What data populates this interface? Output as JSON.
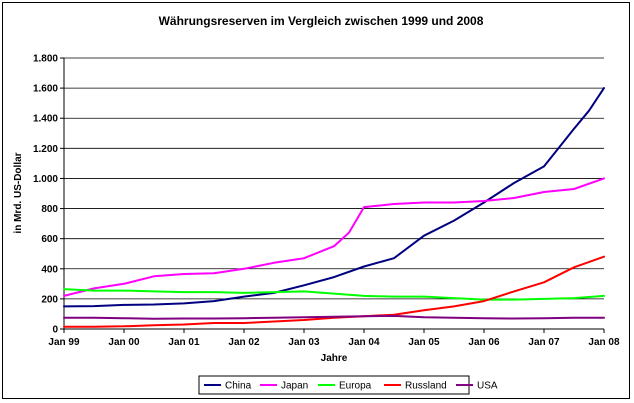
{
  "chart_data": {
    "type": "line",
    "title": "Währungsreserven im Vergleich zwischen 1999 und 2008",
    "xlabel": "Jahre",
    "ylabel": "in Mrd. US-Dollar",
    "ylim": [
      0,
      1800
    ],
    "yticks": [
      0,
      200,
      400,
      600,
      800,
      1000,
      1200,
      1400,
      1600,
      1800
    ],
    "ytick_labels": [
      "0",
      "200",
      "400",
      "600",
      "800",
      "1.000",
      "1.200",
      "1.400",
      "1.600",
      "1.800"
    ],
    "xlim": [
      1999,
      2008
    ],
    "xticks": [
      1999,
      2000,
      2001,
      2002,
      2003,
      2004,
      2005,
      2006,
      2007,
      2008
    ],
    "xtick_labels": [
      "Jan 99",
      "Jan 00",
      "Jan 01",
      "Jan 02",
      "Jan 03",
      "Jan 04",
      "Jan 05",
      "Jan 06",
      "Jan 07",
      "Jan 08"
    ],
    "grid": "horizontal",
    "legend_position": "bottom",
    "series": [
      {
        "name": "China",
        "color": "#000080",
        "x": [
          1999,
          1999.5,
          2000,
          2000.5,
          2001,
          2001.5,
          2002,
          2002.5,
          2003,
          2003.5,
          2004,
          2004.5,
          2005,
          2005.5,
          2006,
          2006.5,
          2007,
          2007.5,
          2007.75,
          2008
        ],
        "y": [
          150,
          152,
          160,
          163,
          170,
          185,
          215,
          240,
          290,
          345,
          415,
          470,
          620,
          720,
          840,
          970,
          1080,
          1330,
          1450,
          1600
        ]
      },
      {
        "name": "Japan",
        "color": "#FF00FF",
        "x": [
          1999,
          1999.5,
          2000,
          2000.5,
          2001,
          2001.5,
          2002,
          2002.5,
          2003,
          2003.5,
          2003.75,
          2004,
          2004.5,
          2005,
          2005.5,
          2006,
          2006.5,
          2007,
          2007.5,
          2008
        ],
        "y": [
          220,
          270,
          300,
          350,
          365,
          370,
          400,
          440,
          470,
          550,
          640,
          810,
          830,
          840,
          840,
          850,
          870,
          910,
          930,
          1000
        ]
      },
      {
        "name": "Europa",
        "color": "#00FF00",
        "x": [
          1999,
          1999.5,
          2000,
          2000.5,
          2001,
          2001.5,
          2002,
          2002.5,
          2003,
          2003.5,
          2004,
          2004.5,
          2005,
          2005.5,
          2006,
          2006.5,
          2007,
          2007.5,
          2008
        ],
        "y": [
          265,
          255,
          255,
          250,
          245,
          245,
          240,
          245,
          250,
          235,
          220,
          215,
          215,
          205,
          195,
          195,
          200,
          205,
          220
        ]
      },
      {
        "name": "Russland",
        "color": "#FF0000",
        "x": [
          1999,
          1999.5,
          2000,
          2000.5,
          2001,
          2001.5,
          2002,
          2002.5,
          2003,
          2003.5,
          2004,
          2004.5,
          2005,
          2005.5,
          2006,
          2006.5,
          2007,
          2007.5,
          2008
        ],
        "y": [
          15,
          15,
          18,
          25,
          30,
          40,
          40,
          50,
          60,
          75,
          85,
          95,
          125,
          150,
          185,
          250,
          310,
          410,
          480
        ]
      },
      {
        "name": "USA",
        "color": "#800080",
        "x": [
          1999,
          1999.5,
          2000,
          2000.5,
          2001,
          2001.5,
          2002,
          2002.5,
          2003,
          2003.5,
          2004,
          2004.5,
          2005,
          2005.5,
          2006,
          2006.5,
          2007,
          2007.5,
          2008
        ],
        "y": [
          75,
          75,
          72,
          68,
          70,
          70,
          72,
          75,
          78,
          82,
          85,
          87,
          78,
          75,
          72,
          70,
          72,
          75,
          75
        ]
      }
    ]
  }
}
